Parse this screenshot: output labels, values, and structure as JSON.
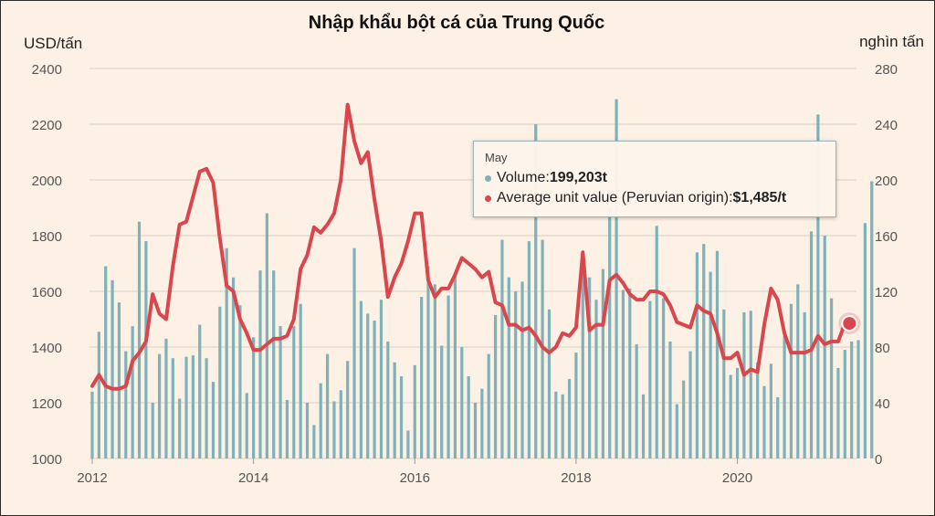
{
  "chart_data": {
    "type": "bar+line",
    "title": "Nhập khẩu bột cá của Trung Quốc",
    "left_axis_label": "USD/tấn",
    "right_axis_label": "nghìn tấn",
    "left_ylim": [
      1000,
      2400
    ],
    "left_ticks": [
      "1000",
      "1200",
      "1400",
      "1600",
      "1800",
      "2000",
      "2200",
      "2400"
    ],
    "right_ylim": [
      0,
      280
    ],
    "right_ticks": [
      "0",
      "40",
      "80",
      "120",
      "160",
      "200",
      "240",
      "280"
    ],
    "x_ticks": [
      "2012",
      "2014",
      "2016",
      "2018",
      "2020"
    ],
    "x_start": "2012-01",
    "grid": "horizontal",
    "colors": {
      "bar": "#7fb2b8",
      "line": "#d9464b",
      "grid": "#d8cfc6",
      "axis_text": "#555555"
    },
    "series": [
      {
        "name": "Volume",
        "unit": "thousand tonnes",
        "axis": "right",
        "kind": "bar",
        "values": [
          48,
          91,
          138,
          128,
          112,
          77,
          95,
          170,
          156,
          40,
          75,
          86,
          72,
          43,
          73,
          74,
          96,
          72,
          55,
          109,
          151,
          130,
          110,
          47,
          87,
          135,
          176,
          135,
          95,
          42,
          95,
          111,
          40,
          24,
          54,
          75,
          41,
          49,
          70,
          151,
          113,
          104,
          99,
          114,
          84,
          69,
          59,
          20,
          67,
          116,
          138,
          125,
          81,
          117,
          133,
          80,
          59,
          40,
          50,
          75,
          103,
          157,
          130,
          120,
          127,
          156,
          240,
          157,
          107,
          48,
          46,
          57,
          76,
          136,
          130,
          114,
          136,
          179,
          258,
          121,
          122,
          82,
          46,
          113,
          167,
          115,
          84,
          39,
          56,
          77,
          148,
          154,
          134,
          149,
          107,
          60,
          65,
          105,
          106,
          69,
          52,
          68,
          44,
          88,
          111,
          125,
          105,
          163,
          247,
          160,
          115,
          65,
          78,
          84,
          85,
          169,
          199
        ]
      },
      {
        "name": "Average unit value (Peruvian origin)",
        "unit": "USD/t",
        "axis": "left",
        "kind": "line",
        "values": [
          1260,
          1300,
          1260,
          1250,
          1250,
          1260,
          1350,
          1380,
          1420,
          1590,
          1520,
          1500,
          1690,
          1840,
          1850,
          1940,
          2030,
          2040,
          1990,
          1790,
          1620,
          1600,
          1500,
          1450,
          1390,
          1390,
          1410,
          1430,
          1430,
          1440,
          1500,
          1680,
          1730,
          1830,
          1810,
          1840,
          1880,
          2000,
          2270,
          2140,
          2060,
          2100,
          1930,
          1780,
          1580,
          1650,
          1700,
          1780,
          1880,
          1880,
          1640,
          1580,
          1610,
          1610,
          1660,
          1720,
          1700,
          1680,
          1650,
          1670,
          1560,
          1550,
          1480,
          1480,
          1460,
          1470,
          1440,
          1400,
          1380,
          1400,
          1450,
          1440,
          1470,
          1740,
          1460,
          1480,
          1480,
          1640,
          1660,
          1630,
          1590,
          1570,
          1570,
          1600,
          1600,
          1590,
          1550,
          1490,
          1480,
          1470,
          1550,
          1530,
          1520,
          1450,
          1360,
          1360,
          1380,
          1300,
          1320,
          1310,
          1480,
          1610,
          1570,
          1450,
          1380,
          1380,
          1380,
          1390,
          1440,
          1410,
          1420,
          1420,
          1485
        ]
      }
    ],
    "tooltip": {
      "month": "May",
      "volume_label": "Volume: ",
      "volume_value": "199,203t",
      "value_label": "Average unit value (Peruvian origin): ",
      "value_value": "$1,485/t"
    }
  }
}
